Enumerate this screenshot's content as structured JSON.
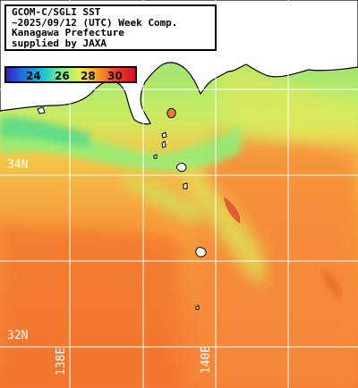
{
  "header": {
    "line1": "GCOM-C/SGLI SST",
    "line2": "~2025/09/12 (UTC) Week Comp.",
    "line3": "Kanagawa Prefecture",
    "line4": "supplied by JAXA"
  },
  "colorbar": {
    "ticks": [
      "24",
      "26",
      "28",
      "30"
    ],
    "colors": [
      "#3b1fbf",
      "#1a7be0",
      "#19c2d6",
      "#7cf08a",
      "#e8f056",
      "#f59a2e",
      "#f23c22",
      "#d4102a"
    ]
  },
  "grid": {
    "lat_labels": [
      "34N",
      "32N"
    ],
    "lon_labels": [
      "138E",
      "140E"
    ],
    "color": "#ffffff"
  },
  "colors": {
    "land": "#ffffff",
    "coast": "#000000",
    "warm_sea": "#f57d36",
    "cool_sea": "#7fe47b",
    "no_data": "#ffffff"
  }
}
